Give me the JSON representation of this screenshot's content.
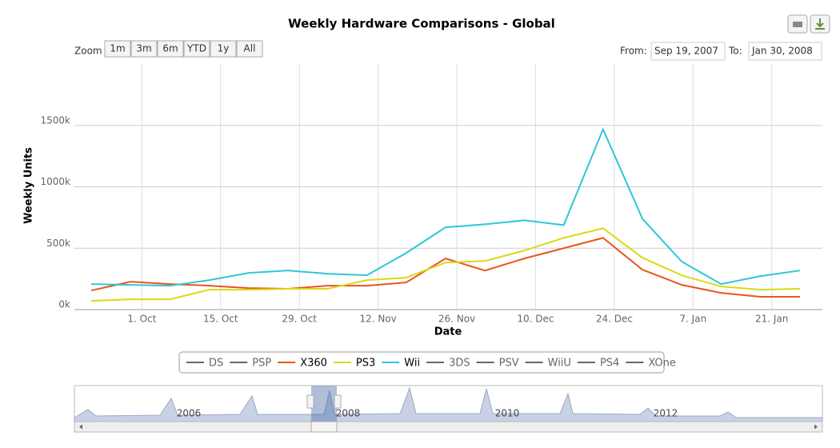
{
  "chart_data": {
    "type": "line",
    "title": "Weekly Hardware Comparisons - Global",
    "y_label": "Weekly Units",
    "x_label": "Date",
    "range_selector": {
      "label": "Zoom",
      "buttons": [
        "1m",
        "3m",
        "6m",
        "YTD",
        "1y",
        "All"
      ]
    },
    "range_input": {
      "from_label": "From:",
      "from": "Sep 19, 2007",
      "to_label": "To:",
      "to": "Jan 30, 2008"
    },
    "x": [
      "2007-09-22",
      "2007-09-29",
      "2007-10-06",
      "2007-10-13",
      "2007-10-20",
      "2007-10-27",
      "2007-11-03",
      "2007-11-10",
      "2007-11-17",
      "2007-11-24",
      "2007-12-01",
      "2007-12-08",
      "2007-12-15",
      "2007-12-22",
      "2007-12-29",
      "2008-01-05",
      "2008-01-12",
      "2008-01-19",
      "2008-01-26"
    ],
    "series": [
      {
        "name": "DS",
        "color": "#666666",
        "visible": false
      },
      {
        "name": "PSP",
        "color": "#666666",
        "visible": false
      },
      {
        "name": "X360",
        "color": "#e8561e",
        "visible": true,
        "values": [
          156000,
          227000,
          208000,
          195000,
          175000,
          169000,
          195000,
          195000,
          221000,
          416000,
          318000,
          416000,
          500000,
          584000,
          325000,
          201000,
          136000,
          104000,
          104000
        ]
      },
      {
        "name": "PS3",
        "color": "#dcd815",
        "visible": true,
        "values": [
          71000,
          84000,
          84000,
          162000,
          162000,
          169000,
          169000,
          240000,
          260000,
          383000,
          396000,
          481000,
          584000,
          662000,
          422000,
          279000,
          188000,
          162000,
          169000
        ]
      },
      {
        "name": "Wii",
        "color": "#2ec7d8",
        "visible": true,
        "values": [
          208000,
          201000,
          195000,
          240000,
          299000,
          318000,
          292000,
          279000,
          461000,
          670000,
          695000,
          727000,
          688000,
          1468000,
          740000,
          390000,
          208000,
          273000,
          318000
        ]
      },
      {
        "name": "3DS",
        "color": "#666666",
        "visible": false
      },
      {
        "name": "PSV",
        "color": "#666666",
        "visible": false
      },
      {
        "name": "WiiU",
        "color": "#666666",
        "visible": false
      },
      {
        "name": "PS4",
        "color": "#666666",
        "visible": false
      },
      {
        "name": "XOne",
        "color": "#666666",
        "visible": false
      }
    ],
    "xlim": [
      "2007-09-19",
      "2008-01-30"
    ],
    "xticks": [
      {
        "value": "2007-10-01",
        "label": "1. Oct"
      },
      {
        "value": "2007-10-15",
        "label": "15. Oct"
      },
      {
        "value": "2007-10-29",
        "label": "29. Oct"
      },
      {
        "value": "2007-11-12",
        "label": "12. Nov"
      },
      {
        "value": "2007-11-26",
        "label": "26. Nov"
      },
      {
        "value": "2007-12-10",
        "label": "10. Dec"
      },
      {
        "value": "2007-12-24",
        "label": "24. Dec"
      },
      {
        "value": "2008-01-07",
        "label": "7. Jan"
      },
      {
        "value": "2008-01-21",
        "label": "21. Jan"
      }
    ],
    "ylim": [
      0,
      2000000
    ],
    "yticks": [
      {
        "value": 0,
        "label": "0k"
      },
      {
        "value": 500000,
        "label": "500k"
      },
      {
        "value": 1000000,
        "label": "1000k"
      },
      {
        "value": 1500000,
        "label": "1500k"
      }
    ],
    "grid": true,
    "legend": "bottom",
    "navigator": {
      "labels": [
        "2006",
        "2008",
        "2010",
        "2012"
      ]
    }
  }
}
